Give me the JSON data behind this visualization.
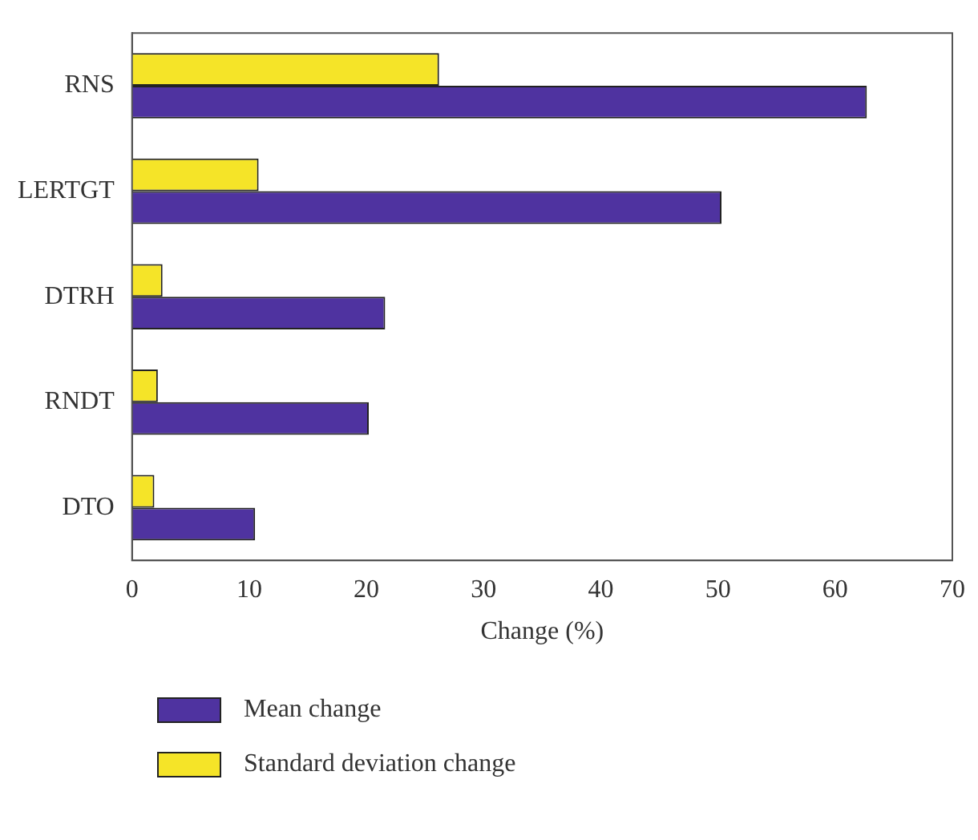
{
  "chart_data": {
    "type": "bar",
    "orientation": "horizontal",
    "xlabel": "Change (%)",
    "categories": [
      "RNS",
      "LERTGT",
      "DTRH",
      "RNDT",
      "DTO"
    ],
    "series": [
      {
        "name": "Mean change",
        "color": "#4f33a0",
        "values": [
          62.7,
          50.3,
          21.6,
          20.2,
          10.5
        ]
      },
      {
        "name": "Standard deviation change",
        "color": "#f5e428",
        "values": [
          26.2,
          10.8,
          2.6,
          2.2,
          1.9
        ]
      }
    ],
    "xlim": [
      0,
      70
    ],
    "xticks": [
      0,
      10,
      20,
      30,
      40,
      50,
      60,
      70
    ],
    "grid": false,
    "legend": "bottom"
  }
}
